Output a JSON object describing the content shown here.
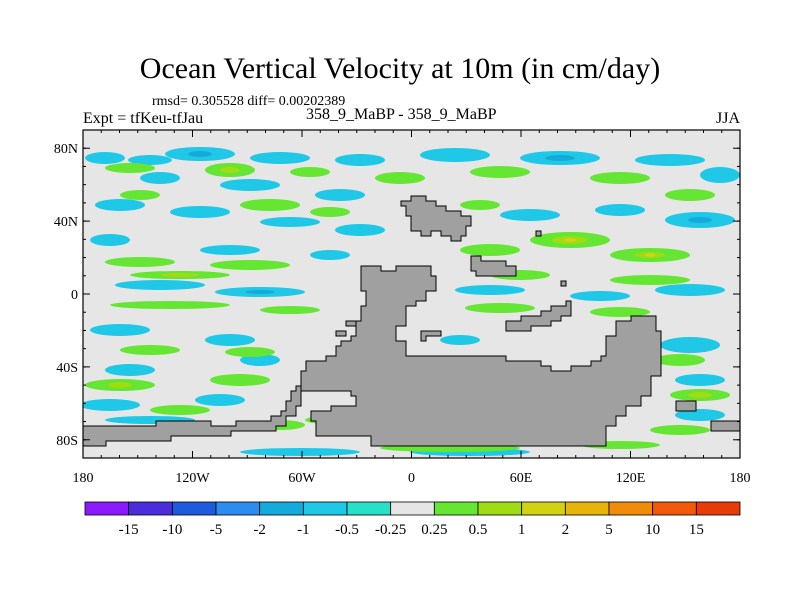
{
  "title": "Ocean Vertical Velocity at 10m (in cm/day)",
  "stats_text": "rmsd= 0.305528 diff= 0.00202389",
  "left_label": "Expt = tfKeu-tfJau",
  "center_label": "358_9_MaBP - 358_9_MaBP",
  "right_label": "JJA",
  "map": {
    "x_ticks": [
      {
        "lon": -180,
        "label": "180"
      },
      {
        "lon": -120,
        "label": "120W"
      },
      {
        "lon": -60,
        "label": "60W"
      },
      {
        "lon": 0,
        "label": "0"
      },
      {
        "lon": 60,
        "label": "60E"
      },
      {
        "lon": 120,
        "label": "120E"
      },
      {
        "lon": 180,
        "label": "180"
      }
    ],
    "y_ticks": [
      {
        "lat": 80,
        "label": "80N"
      },
      {
        "lat": 40,
        "label": "40N"
      },
      {
        "lat": 0,
        "label": "0"
      },
      {
        "lat": -40,
        "label": "40S"
      },
      {
        "lat": -80,
        "label": "80S"
      }
    ],
    "lon_range": [
      -180,
      180
    ],
    "lat_range": [
      -90,
      90
    ],
    "land_color": "#a0a0a0",
    "ocean_background_color": "#e6e6e6"
  },
  "colorbar": {
    "colors": [
      "#8c1aff",
      "#4b2ddc",
      "#1e5adc",
      "#2d8cf0",
      "#14aadc",
      "#1ec8e6",
      "#28e0c8",
      "#e6e6e6",
      "#64e632",
      "#a0dc14",
      "#d2d214",
      "#e6b40a",
      "#f08c0a",
      "#f05a0a",
      "#e63c0a"
    ],
    "labels": [
      "-15",
      "-10",
      "-5",
      "-2",
      "-1",
      "-0.5",
      "-0.25",
      "0.25",
      "0.5",
      "1",
      "2",
      "5",
      "10",
      "15"
    ]
  }
}
